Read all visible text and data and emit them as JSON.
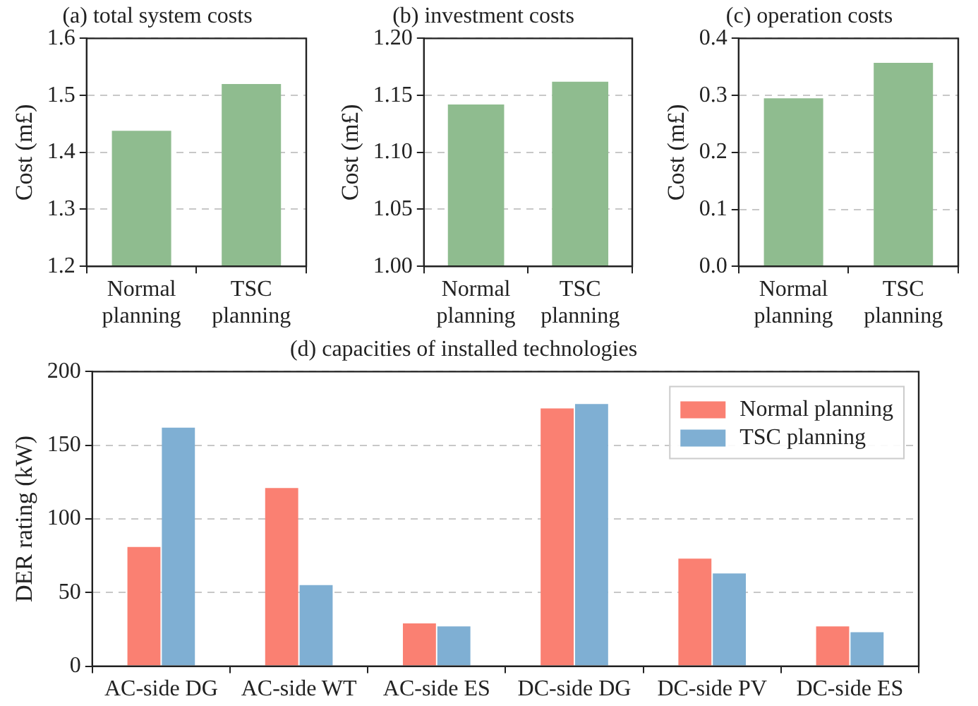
{
  "chart_data": [
    {
      "type": "bar",
      "title": "(a) total system costs",
      "ylabel": "Cost (m£)",
      "categories": [
        "Normal planning",
        "TSC planning"
      ],
      "values": [
        1.438,
        1.52
      ],
      "color": "#8fbc8f",
      "ylim": [
        1.2,
        1.6
      ],
      "yticks": [
        1.2,
        1.3,
        1.4,
        1.5,
        1.6
      ],
      "grid": "y"
    },
    {
      "type": "bar",
      "title": "(b) investment costs",
      "ylabel": "Cost (m£)",
      "categories": [
        "Normal planning",
        "TSC planning"
      ],
      "values": [
        1.142,
        1.162
      ],
      "color": "#8fbc8f",
      "ylim": [
        1.0,
        1.2
      ],
      "yticks": [
        {
          "value": 1.0,
          "label": "1.00"
        },
        {
          "value": 1.05,
          "label": "1.05"
        },
        {
          "value": 1.1,
          "label": "1.10"
        },
        {
          "value": 1.15,
          "label": "1.15"
        },
        {
          "value": 1.2,
          "label": "1.20"
        }
      ],
      "grid": "y"
    },
    {
      "type": "bar",
      "title": "(c) operation costs",
      "ylabel": "Cost (m£)",
      "categories": [
        "Normal planning",
        "TSC planning"
      ],
      "values": [
        0.295,
        0.357
      ],
      "color": "#8fbc8f",
      "ylim": [
        0,
        0.4
      ],
      "yticks": [
        {
          "value": 0,
          "label": "0.0"
        },
        0.1,
        0.2,
        0.3,
        0.4
      ],
      "grid": "y"
    },
    {
      "type": "bar",
      "title": "(d) capacities of installed technologies",
      "ylabel": "DER rating (kW)",
      "categories": [
        "AC-side DG",
        "AC-side WT",
        "AC-side ES",
        "DC-side DG",
        "DC-side PV",
        "DC-side ES"
      ],
      "series": [
        {
          "name": "Normal planning",
          "color": "#fa8072",
          "values": [
            81,
            121,
            29,
            175,
            73,
            27
          ]
        },
        {
          "name": "TSC planning",
          "color": "#7fafd3",
          "values": [
            162,
            55,
            27,
            178,
            63,
            23
          ]
        }
      ],
      "ylim": [
        0,
        200
      ],
      "yticks": [
        0,
        50,
        100,
        150,
        200
      ],
      "grid": "y",
      "legend": "top right"
    }
  ]
}
